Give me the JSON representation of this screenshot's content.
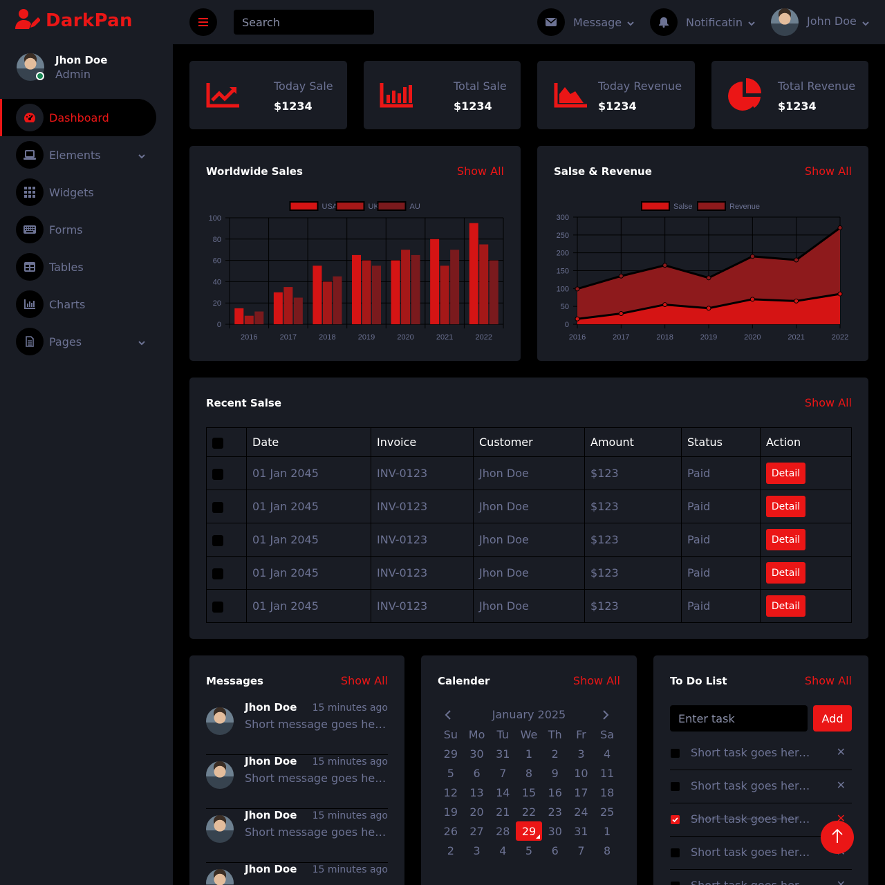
{
  "brand": {
    "name": "DarkPan",
    "icon": "user-edit-icon",
    "color": "#EB1616"
  },
  "sidebar": {
    "user": {
      "name": "Jhon Doe",
      "role": "Admin"
    },
    "items": [
      {
        "label": "Dashboard",
        "icon": "tachometer-icon",
        "active": true
      },
      {
        "label": "Elements",
        "icon": "laptop-icon",
        "dropdown": true
      },
      {
        "label": "Widgets",
        "icon": "th-icon"
      },
      {
        "label": "Forms",
        "icon": "keyboard-icon"
      },
      {
        "label": "Tables",
        "icon": "table-icon"
      },
      {
        "label": "Charts",
        "icon": "chart-bar-icon"
      },
      {
        "label": "Pages",
        "icon": "file-icon",
        "dropdown": true
      }
    ]
  },
  "topbar": {
    "search_placeholder": "Search",
    "message_label": "Message",
    "notification_label": "Notificatin",
    "user_label": "John Doe"
  },
  "stats": [
    {
      "label": "Today Sale",
      "value": "$1234",
      "icon": "chart-line-icon"
    },
    {
      "label": "Total Sale",
      "value": "$1234",
      "icon": "chart-bar-icon"
    },
    {
      "label": "Today Revenue",
      "value": "$1234",
      "icon": "chart-area-icon"
    },
    {
      "label": "Total Revenue",
      "value": "$1234",
      "icon": "chart-pie-icon"
    }
  ],
  "worldwide": {
    "title": "Worldwide Sales",
    "show_all": "Show All"
  },
  "salesrev": {
    "title": "Salse & Revenue",
    "show_all": "Show All"
  },
  "chart_data": [
    {
      "type": "bar",
      "categories": [
        "2016",
        "2017",
        "2018",
        "2019",
        "2020",
        "2021",
        "2022"
      ],
      "series": [
        {
          "name": "USA",
          "values": [
            15,
            30,
            55,
            65,
            60,
            80,
            95
          ],
          "color": "#D51414"
        },
        {
          "name": "UK",
          "values": [
            8,
            35,
            40,
            60,
            70,
            55,
            75
          ],
          "color": "#A51818"
        },
        {
          "name": "AU",
          "values": [
            12,
            25,
            45,
            55,
            65,
            70,
            60
          ],
          "color": "#7A1A1D"
        }
      ],
      "ylim": [
        0,
        100
      ],
      "yticks": [
        0,
        20,
        40,
        60,
        80,
        100
      ],
      "legend": "top"
    },
    {
      "type": "area",
      "categories": [
        "2016",
        "2017",
        "2018",
        "2019",
        "2020",
        "2021",
        "2022"
      ],
      "series": [
        {
          "name": "Salse",
          "values": [
            15,
            30,
            55,
            45,
            70,
            65,
            85
          ],
          "color": "#D51414"
        },
        {
          "name": "Revenue",
          "values": [
            99,
            135,
            165,
            130,
            190,
            180,
            270
          ],
          "color": "#8E1A1C"
        }
      ],
      "ylim": [
        0,
        300
      ],
      "yticks": [
        0,
        50,
        100,
        150,
        200,
        250,
        300
      ],
      "legend": "top"
    }
  ],
  "recent": {
    "title": "Recent Salse",
    "show_all": "Show All",
    "headers": [
      "Date",
      "Invoice",
      "Customer",
      "Amount",
      "Status",
      "Action"
    ],
    "rows": [
      {
        "date": "01 Jan 2045",
        "invoice": "INV-0123",
        "customer": "Jhon Doe",
        "amount": "$123",
        "status": "Paid",
        "action": "Detail"
      },
      {
        "date": "01 Jan 2045",
        "invoice": "INV-0123",
        "customer": "Jhon Doe",
        "amount": "$123",
        "status": "Paid",
        "action": "Detail"
      },
      {
        "date": "01 Jan 2045",
        "invoice": "INV-0123",
        "customer": "Jhon Doe",
        "amount": "$123",
        "status": "Paid",
        "action": "Detail"
      },
      {
        "date": "01 Jan 2045",
        "invoice": "INV-0123",
        "customer": "Jhon Doe",
        "amount": "$123",
        "status": "Paid",
        "action": "Detail"
      },
      {
        "date": "01 Jan 2045",
        "invoice": "INV-0123",
        "customer": "Jhon Doe",
        "amount": "$123",
        "status": "Paid",
        "action": "Detail"
      }
    ]
  },
  "messages": {
    "title": "Messages",
    "show_all": "Show All",
    "items": [
      {
        "name": "Jhon Doe",
        "time": "15 minutes ago",
        "text": "Short message goes here..."
      },
      {
        "name": "Jhon Doe",
        "time": "15 minutes ago",
        "text": "Short message goes here..."
      },
      {
        "name": "Jhon Doe",
        "time": "15 minutes ago",
        "text": "Short message goes here..."
      },
      {
        "name": "Jhon Doe",
        "time": "15 minutes ago",
        "text": ""
      }
    ]
  },
  "calendar": {
    "title": "Calender",
    "show_all": "Show All",
    "month": "January 2025",
    "weekdays": [
      "Su",
      "Mo",
      "Tu",
      "We",
      "Th",
      "Fr",
      "Sa"
    ],
    "days": [
      "29",
      "30",
      "31",
      "1",
      "2",
      "3",
      "4",
      "5",
      "6",
      "7",
      "8",
      "9",
      "10",
      "11",
      "12",
      "13",
      "14",
      "15",
      "16",
      "17",
      "18",
      "19",
      "20",
      "21",
      "22",
      "23",
      "24",
      "25",
      "26",
      "27",
      "28",
      "29",
      "30",
      "31",
      "1",
      "2",
      "3",
      "4",
      "5",
      "6",
      "7",
      "8"
    ],
    "selected_day": "29"
  },
  "todo": {
    "title": "To Do List",
    "show_all": "Show All",
    "placeholder": "Enter task",
    "add_label": "Add",
    "items": [
      {
        "text": "Short task goes here...",
        "done": false
      },
      {
        "text": "Short task goes here...",
        "done": false
      },
      {
        "text": "Short task goes here...",
        "done": true
      },
      {
        "text": "Short task goes here...",
        "done": false
      },
      {
        "text": "Short task goes here...",
        "done": false
      }
    ]
  }
}
